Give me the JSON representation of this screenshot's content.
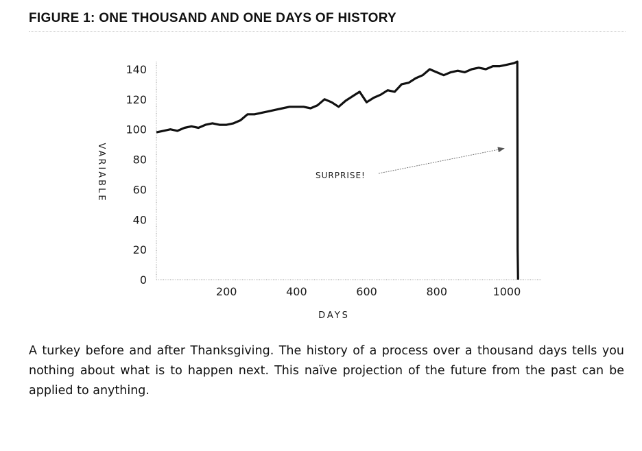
{
  "figure": {
    "title": "FIGURE 1: ONE THOUSAND AND ONE DAYS OF HISTORY",
    "caption": "A turkey before and after Thanksgiving. The history of a process over a thousand days tells you nothing about what is to happen next. This naïve projection of the future from the past can be applied to anything."
  },
  "chart_data": {
    "type": "line",
    "title": "FIGURE 1: ONE THOUSAND AND ONE DAYS OF HISTORY",
    "xlabel": "DAYS",
    "ylabel": "VARIABLE",
    "xlim": [
      0,
      1100
    ],
    "ylim": [
      0,
      145
    ],
    "xticks": [
      200,
      400,
      600,
      800,
      1000
    ],
    "yticks": [
      0,
      20,
      40,
      60,
      80,
      100,
      120,
      140
    ],
    "grid": false,
    "series": [
      {
        "color": "#111111",
        "x": [
          0,
          20,
          40,
          60,
          80,
          100,
          120,
          140,
          160,
          180,
          200,
          220,
          240,
          260,
          280,
          300,
          320,
          340,
          360,
          380,
          400,
          420,
          440,
          460,
          480,
          500,
          520,
          540,
          560,
          580,
          600,
          620,
          640,
          660,
          680,
          700,
          720,
          740,
          760,
          780,
          800,
          820,
          840,
          860,
          880,
          900,
          920,
          940,
          960,
          980,
          1000,
          1020,
          1030,
          1031,
          1032
        ],
        "y": [
          98,
          99,
          100,
          99,
          101,
          102,
          101,
          103,
          104,
          103,
          103,
          104,
          106,
          110,
          110,
          111,
          112,
          113,
          114,
          115,
          115,
          115,
          114,
          116,
          120,
          118,
          115,
          119,
          122,
          125,
          118,
          121,
          123,
          126,
          125,
          130,
          131,
          134,
          136,
          140,
          138,
          136,
          138,
          139,
          138,
          140,
          141,
          140,
          142,
          142,
          143,
          144,
          145,
          20,
          0
        ]
      }
    ],
    "annotations": [
      {
        "text": "SURPRISE!",
        "points_to": {
          "x": 1000,
          "y": 85
        }
      }
    ]
  }
}
